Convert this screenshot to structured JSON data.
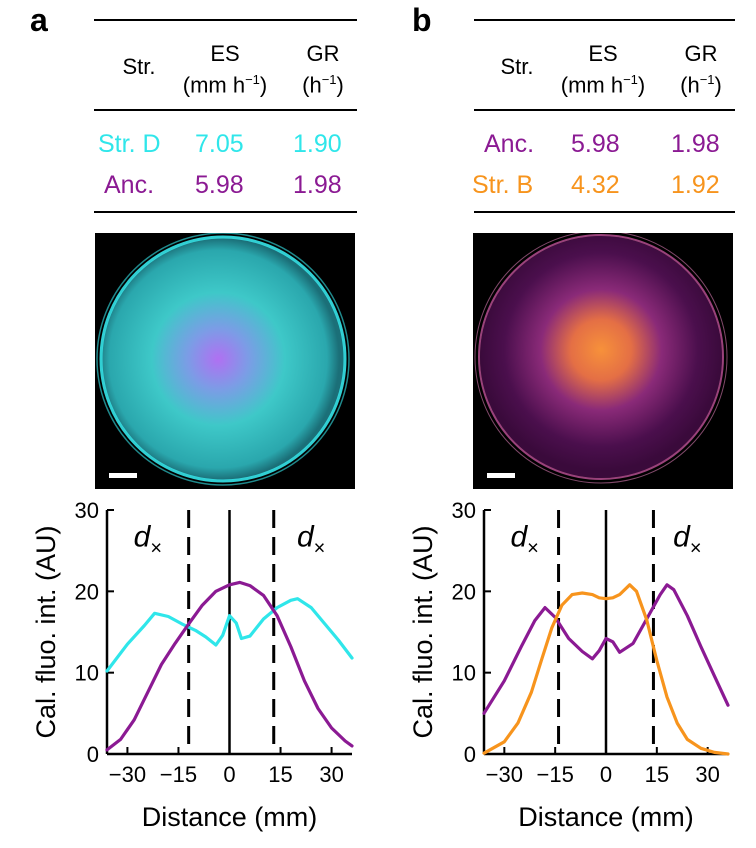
{
  "panels": [
    {
      "label": "a",
      "table": {
        "headers": {
          "strain": "Str.",
          "es_label": "ES",
          "es_unit_base": "(mm h",
          "es_unit_exp": "−1",
          "es_unit_close": ")",
          "gr_label": "GR",
          "gr_unit_base": "(h",
          "gr_unit_exp": "−1",
          "gr_unit_close": ")"
        },
        "rows": [
          {
            "strain": "Str. D",
            "es": "7.05",
            "gr": "1.90",
            "color": "#2fe6ea"
          },
          {
            "strain": "Anc.",
            "es": "5.98",
            "gr": "1.98",
            "color": "#8b1a93"
          }
        ]
      },
      "dish": {
        "center_color": "#b36ef5",
        "mid_color": "#3fc8c6",
        "rim_color": "#36e5ea"
      }
    },
    {
      "label": "b",
      "table": {
        "headers": {
          "strain": "Str.",
          "es_label": "ES",
          "es_unit_base": "(mm h",
          "es_unit_exp": "−1",
          "es_unit_close": ")",
          "gr_label": "GR",
          "gr_unit_base": "(h",
          "gr_unit_exp": "−1",
          "gr_unit_close": ")"
        },
        "rows": [
          {
            "strain": "Anc.",
            "es": "5.98",
            "gr": "1.98",
            "color": "#8b1a93"
          },
          {
            "strain": "Str. B",
            "es": "4.32",
            "gr": "1.92",
            "color": "#f7941d"
          }
        ]
      },
      "dish": {
        "center_color": "#f7913a",
        "mid_color": "#7a1a7e",
        "rim_color": "#c0529a"
      }
    }
  ],
  "chart_data": [
    {
      "type": "line",
      "xlabel": "Distance (mm)",
      "ylabel": "Cal. fluo. int. (AU)",
      "xlim": [
        -36,
        36
      ],
      "ylim": [
        0,
        30
      ],
      "xticks": [
        -30,
        -15,
        0,
        15,
        30
      ],
      "xtick_labels": [
        "−30",
        "−15",
        "0",
        "15",
        "30"
      ],
      "yticks": [
        0,
        10,
        20,
        30
      ],
      "ytick_labels": [
        "0",
        "10",
        "20",
        "30"
      ],
      "dashed_lines_x": [
        -12,
        13
      ],
      "solid_line_x": 0,
      "annotations": [
        {
          "text": "d",
          "sub": "×",
          "x": -24,
          "y": 25.5
        },
        {
          "text": "d",
          "sub": "×",
          "x": 24,
          "y": 25.5
        }
      ],
      "series": [
        {
          "name": "Str. D",
          "color": "#2fe6ea",
          "x": [
            -36,
            -30,
            -25,
            -22,
            -18,
            -14,
            -10,
            -7,
            -4,
            -2,
            0,
            2,
            3.5,
            6,
            10,
            14,
            18,
            20,
            24,
            28,
            32,
            36
          ],
          "y": [
            10.2,
            13.5,
            15.8,
            17.3,
            16.9,
            16.0,
            15.2,
            14.4,
            13.4,
            14.6,
            17.0,
            16.1,
            14.2,
            14.5,
            16.6,
            18.0,
            18.9,
            19.1,
            18.0,
            16.0,
            14.0,
            11.8
          ]
        },
        {
          "name": "Anc.",
          "color": "#8b1a93",
          "x": [
            -36,
            -32,
            -28,
            -24,
            -20,
            -16,
            -12,
            -8,
            -4,
            0,
            3,
            6,
            10,
            14,
            18,
            22,
            26,
            30,
            34,
            36
          ],
          "y": [
            0.5,
            1.8,
            4.2,
            7.6,
            11.0,
            13.6,
            16.0,
            18.3,
            20.0,
            20.8,
            21.1,
            20.7,
            19.5,
            17.0,
            13.2,
            9.0,
            5.6,
            3.2,
            1.6,
            1.0
          ]
        }
      ]
    },
    {
      "type": "line",
      "xlabel": "Distance (mm)",
      "ylabel": "Cal. fluo. int. (AU)",
      "xlim": [
        -36,
        36
      ],
      "ylim": [
        0,
        30
      ],
      "xticks": [
        -30,
        -15,
        0,
        15,
        30
      ],
      "xtick_labels": [
        "−30",
        "−15",
        "0",
        "15",
        "30"
      ],
      "yticks": [
        0,
        10,
        20,
        30
      ],
      "ytick_labels": [
        "0",
        "10",
        "20",
        "30"
      ],
      "dashed_lines_x": [
        -14,
        14
      ],
      "solid_line_x": 0,
      "annotations": [
        {
          "text": "d",
          "sub": "×",
          "x": -24,
          "y": 25.5
        },
        {
          "text": "d",
          "sub": "×",
          "x": 24,
          "y": 25.5
        }
      ],
      "series": [
        {
          "name": "Anc.",
          "color": "#8b1a93",
          "x": [
            -36,
            -30,
            -25,
            -21,
            -18,
            -15,
            -11,
            -7,
            -4,
            -2,
            0,
            2,
            4,
            8,
            12,
            16,
            18,
            20,
            24,
            28,
            32,
            36
          ],
          "y": [
            5.0,
            9.0,
            13.2,
            16.4,
            18.0,
            16.8,
            14.2,
            12.6,
            11.7,
            12.7,
            14.2,
            13.8,
            12.5,
            13.6,
            16.6,
            19.6,
            20.8,
            20.2,
            17.0,
            13.2,
            9.6,
            6.0
          ]
        },
        {
          "name": "Str. B",
          "color": "#f7941d",
          "x": [
            -36,
            -30,
            -26,
            -22,
            -19,
            -16,
            -13,
            -10,
            -7,
            -4,
            -2,
            0,
            2,
            4,
            7,
            9,
            12,
            15,
            18,
            21,
            24,
            28,
            32,
            36
          ],
          "y": [
            0.1,
            1.5,
            3.8,
            7.6,
            11.6,
            15.5,
            18.3,
            19.6,
            19.8,
            19.6,
            19.2,
            19.1,
            19.2,
            19.6,
            20.8,
            20.0,
            16.5,
            11.5,
            7.0,
            3.8,
            1.8,
            0.7,
            0.2,
            0.0
          ]
        }
      ]
    }
  ]
}
